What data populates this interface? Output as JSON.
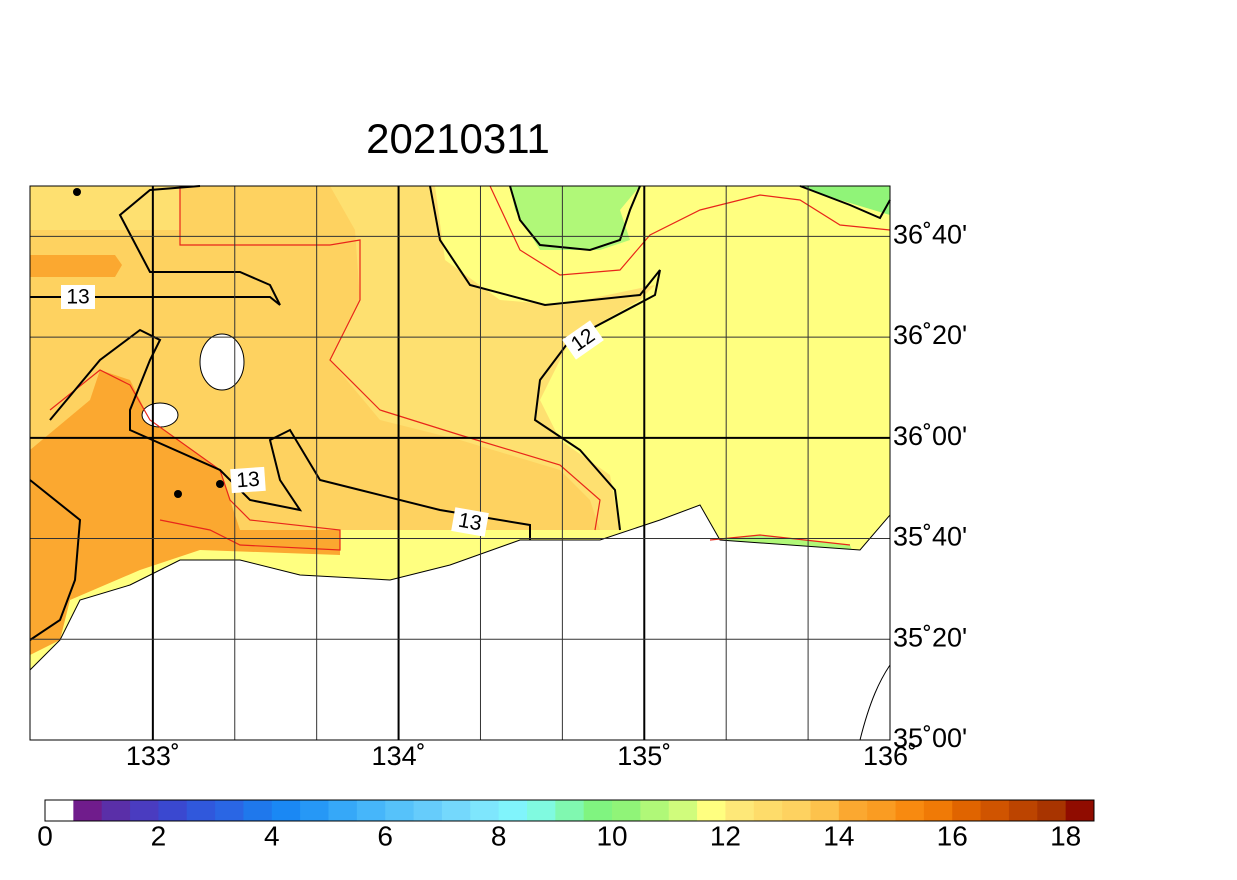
{
  "title": "20210311",
  "map": {
    "lon_range": [
      132.5,
      136
    ],
    "lat_range": [
      35,
      36.8333333
    ],
    "lon_ticks": [
      {
        "value": 133,
        "label": "133˚"
      },
      {
        "value": 134,
        "label": "134˚"
      },
      {
        "value": 135,
        "label": "135˚"
      },
      {
        "value": 136,
        "label": "136˚"
      }
    ],
    "lat_ticks": [
      {
        "value": 36.6666667,
        "label": "36˚40'"
      },
      {
        "value": 36.3333333,
        "label": "36˚20'"
      },
      {
        "value": 36,
        "label": "36˚00'"
      },
      {
        "value": 35.6666667,
        "label": "35˚40'"
      },
      {
        "value": 35.3333333,
        "label": "35˚20'"
      },
      {
        "value": 35,
        "label": "35˚00'"
      }
    ],
    "contour_labels": [
      "13",
      "12",
      "13",
      "13"
    ]
  },
  "colorbar": {
    "range": [
      0,
      18.5
    ],
    "ticks": [
      0,
      2,
      4,
      6,
      8,
      10,
      12,
      14,
      16,
      18
    ],
    "colors": [
      "#ffffff",
      "#701c8c",
      "#5a2fa8",
      "#4a3cc0",
      "#3a48d0",
      "#3058dc",
      "#2a66e4",
      "#1f78ec",
      "#1a88f4",
      "#2698f6",
      "#36a8f8",
      "#46b6fa",
      "#56c2fa",
      "#66ccfb",
      "#74d8fc",
      "#7ee6fd",
      "#80f4fc",
      "#80fae0",
      "#80f8b0",
      "#80f480",
      "#90f478",
      "#b0f878",
      "#d0fc7c",
      "#ffff80",
      "#fee878",
      "#fedc6a",
      "#fed260",
      "#fdc24c",
      "#fba830",
      "#fa9c22",
      "#f88a10",
      "#f07a06",
      "#e06400",
      "#d05400",
      "#bc4400",
      "#a83400",
      "#900c00"
    ]
  }
}
